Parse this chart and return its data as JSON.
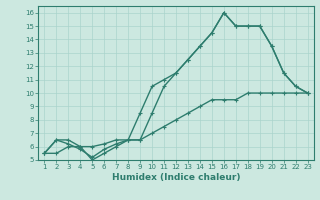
{
  "xlabel": "Humidex (Indice chaleur)",
  "x_values": [
    1,
    2,
    3,
    4,
    5,
    6,
    7,
    8,
    9,
    10,
    11,
    12,
    13,
    14,
    15,
    16,
    17,
    18,
    19,
    20,
    21,
    22,
    23
  ],
  "line1_y": [
    5.5,
    6.5,
    6.5,
    6.0,
    5.0,
    5.5,
    6.0,
    6.5,
    6.5,
    8.5,
    10.5,
    11.5,
    12.5,
    13.5,
    14.5,
    16.0,
    15.0,
    15.0,
    15.0,
    13.5,
    11.5,
    10.5,
    10.0
  ],
  "line2_y": [
    5.5,
    6.5,
    6.2,
    5.8,
    5.2,
    5.8,
    6.2,
    6.5,
    8.5,
    10.5,
    11.0,
    11.5,
    12.5,
    13.5,
    14.5,
    16.0,
    15.0,
    15.0,
    15.0,
    13.5,
    11.5,
    10.5,
    10.0
  ],
  "line3_y": [
    5.5,
    5.5,
    6.0,
    6.0,
    6.0,
    6.2,
    6.5,
    6.5,
    6.5,
    7.0,
    7.5,
    8.0,
    8.5,
    9.0,
    9.5,
    9.5,
    9.5,
    10.0,
    10.0,
    10.0,
    10.0,
    10.0,
    10.0
  ],
  "line_color": "#2e7d6e",
  "bg_color": "#cce8e0",
  "grid_color": "#aad4cc",
  "xlim_min": 0.5,
  "xlim_max": 23.5,
  "ylim_min": 5,
  "ylim_max": 16.5,
  "yticks": [
    5,
    6,
    7,
    8,
    9,
    10,
    11,
    12,
    13,
    14,
    15,
    16
  ],
  "xticks": [
    1,
    2,
    3,
    4,
    5,
    6,
    7,
    8,
    9,
    10,
    11,
    12,
    13,
    14,
    15,
    16,
    17,
    18,
    19,
    20,
    21,
    22,
    23
  ],
  "tick_fontsize": 5.0,
  "xlabel_fontsize": 6.5,
  "marker_size": 3.5,
  "linewidth": 1.0
}
